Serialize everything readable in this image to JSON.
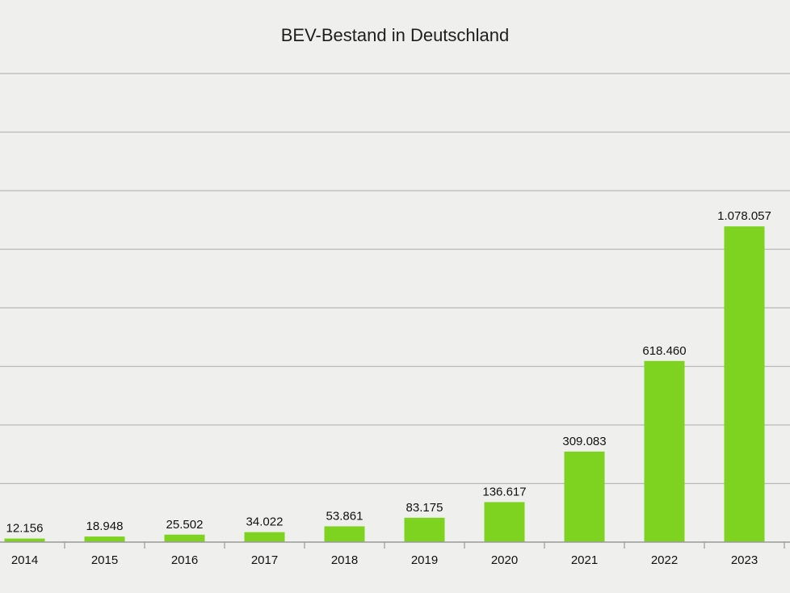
{
  "chart_data": {
    "type": "bar",
    "title": "BEV-Bestand in Deutschland",
    "xlabel": "",
    "ylabel": "",
    "categories": [
      "2014",
      "2015",
      "2016",
      "2017",
      "2018",
      "2019",
      "2020",
      "2021",
      "2022",
      "2023"
    ],
    "values": [
      12156,
      18948,
      25502,
      34022,
      53861,
      83175,
      136617,
      309083,
      618460,
      1078057
    ],
    "value_labels": [
      "12.156",
      "18.948",
      "25.502",
      "34.022",
      "53.861",
      "83.175",
      "136.617",
      "309.083",
      "618.460",
      "1.078.057"
    ],
    "ylim": [
      0,
      1600000
    ],
    "grid": true,
    "legend": "none",
    "colors": {
      "bar": "#7ed321",
      "background": "#efefed",
      "grid": "#b9b9b9",
      "text": "#111111"
    }
  }
}
